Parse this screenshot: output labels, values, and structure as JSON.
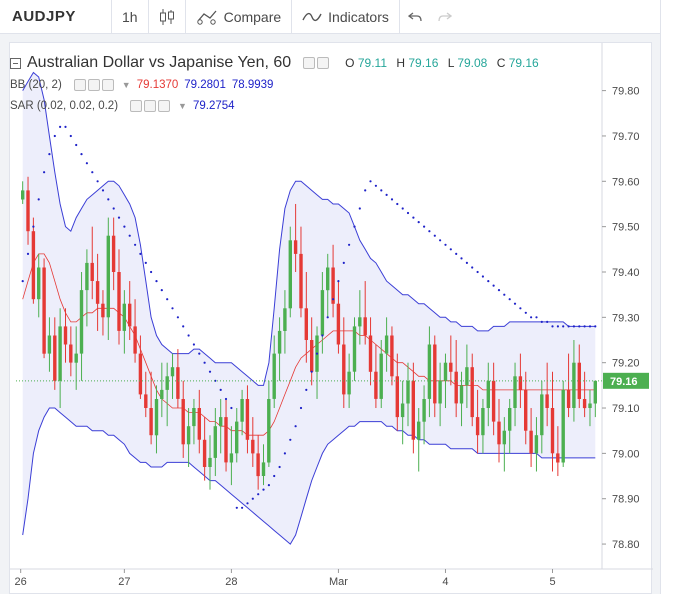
{
  "toolbar": {
    "symbol": "AUDJPY",
    "interval": "1h",
    "compare_label": "Compare",
    "indicators_label": "Indicators"
  },
  "legend": {
    "title": "Australian Dollar vs Japanise Yen, 60",
    "ohlc": {
      "o_label": "O",
      "o": "79.11",
      "h_label": "H",
      "h": "79.16",
      "l_label": "L",
      "l": "79.08",
      "c_label": "C",
      "c": "79.16"
    },
    "bb": {
      "label": "BB (20, 2)",
      "mid": "79.1370",
      "upper": "79.2801",
      "lower": "78.9939"
    },
    "sar": {
      "label": "SAR (0.02, 0.02, 0.2)",
      "value": "79.2754"
    }
  },
  "colors": {
    "up": "#4caf50",
    "down": "#e53935",
    "bb_band": "#3b3ed6",
    "bb_mid": "#e53935",
    "sar": "#1e22c8",
    "last_price_bg": "#4caf50"
  },
  "chart_data": {
    "type": "candlestick",
    "price_axis": {
      "ticks": [
        "79.80",
        "79.70",
        "79.60",
        "79.50",
        "79.40",
        "79.30",
        "79.20",
        "79.10",
        "79.00",
        "78.90",
        "78.80"
      ],
      "range": [
        78.745,
        79.905
      ]
    },
    "time_axis": {
      "labels": [
        "26",
        "27",
        "28",
        "Mar",
        "4",
        "5"
      ]
    },
    "last_price": "79.16",
    "bars_count": 108,
    "candles": [
      [
        79.56,
        79.6,
        79.55,
        79.58
      ],
      [
        79.58,
        79.61,
        79.46,
        79.49
      ],
      [
        79.49,
        79.52,
        79.33,
        79.34
      ],
      [
        79.34,
        79.44,
        79.3,
        79.41
      ],
      [
        79.41,
        79.43,
        79.21,
        79.22
      ],
      [
        79.22,
        79.3,
        79.18,
        79.26
      ],
      [
        79.26,
        79.3,
        79.14,
        79.16
      ],
      [
        79.16,
        79.32,
        79.1,
        79.28
      ],
      [
        79.28,
        79.32,
        79.2,
        79.24
      ],
      [
        79.24,
        79.28,
        79.17,
        79.2
      ],
      [
        79.2,
        79.28,
        79.14,
        79.22
      ],
      [
        79.22,
        79.4,
        79.16,
        79.36
      ],
      [
        79.36,
        79.45,
        79.28,
        79.42
      ],
      [
        79.42,
        79.5,
        79.34,
        79.38
      ],
      [
        79.38,
        79.44,
        79.27,
        79.33
      ],
      [
        79.33,
        79.36,
        79.26,
        79.3
      ],
      [
        79.3,
        79.52,
        79.25,
        79.48
      ],
      [
        79.48,
        79.52,
        79.36,
        79.4
      ],
      [
        79.4,
        79.45,
        79.24,
        79.27
      ],
      [
        79.27,
        79.36,
        79.22,
        79.33
      ],
      [
        79.33,
        79.38,
        79.25,
        79.28
      ],
      [
        79.28,
        79.34,
        79.2,
        79.22
      ],
      [
        79.22,
        79.26,
        79.12,
        79.13
      ],
      [
        79.13,
        79.18,
        79.08,
        79.1
      ],
      [
        79.1,
        79.18,
        79.02,
        79.04
      ],
      [
        79.04,
        79.15,
        79.0,
        79.12
      ],
      [
        79.12,
        79.2,
        79.08,
        79.14
      ],
      [
        79.14,
        79.2,
        79.06,
        79.17
      ],
      [
        79.17,
        79.22,
        79.12,
        79.19
      ],
      [
        79.19,
        79.23,
        79.1,
        79.12
      ],
      [
        79.12,
        79.16,
        78.99,
        79.02
      ],
      [
        79.02,
        79.1,
        78.97,
        79.06
      ],
      [
        79.06,
        79.12,
        79.02,
        79.1
      ],
      [
        79.1,
        79.14,
        79.0,
        79.03
      ],
      [
        79.03,
        79.08,
        78.94,
        78.97
      ],
      [
        78.97,
        79.04,
        78.92,
        78.99
      ],
      [
        78.99,
        79.1,
        78.95,
        79.06
      ],
      [
        79.06,
        79.12,
        79.0,
        79.08
      ],
      [
        79.08,
        79.12,
        78.96,
        78.98
      ],
      [
        78.98,
        79.06,
        78.93,
        79.0
      ],
      [
        79.0,
        79.1,
        78.98,
        79.07
      ],
      [
        79.07,
        79.14,
        79.04,
        79.12
      ],
      [
        79.12,
        79.15,
        79.0,
        79.03
      ],
      [
        79.03,
        79.08,
        78.97,
        79.0
      ],
      [
        79.0,
        79.04,
        78.92,
        78.95
      ],
      [
        78.95,
        79.02,
        78.93,
        78.98
      ],
      [
        78.98,
        79.16,
        78.97,
        79.12
      ],
      [
        79.12,
        79.26,
        79.1,
        79.22
      ],
      [
        79.22,
        79.3,
        79.16,
        79.27
      ],
      [
        79.27,
        79.36,
        79.22,
        79.32
      ],
      [
        79.32,
        79.5,
        79.3,
        79.47
      ],
      [
        79.47,
        79.55,
        79.4,
        79.44
      ],
      [
        79.44,
        79.5,
        79.3,
        79.32
      ],
      [
        79.32,
        79.4,
        79.2,
        79.25
      ],
      [
        79.25,
        79.3,
        79.15,
        79.18
      ],
      [
        79.18,
        79.28,
        79.12,
        79.26
      ],
      [
        79.26,
        79.4,
        79.22,
        79.36
      ],
      [
        79.36,
        79.44,
        79.3,
        79.41
      ],
      [
        79.41,
        79.46,
        79.3,
        79.33
      ],
      [
        79.33,
        79.38,
        79.22,
        79.24
      ],
      [
        79.24,
        79.3,
        79.1,
        79.13
      ],
      [
        79.13,
        79.22,
        79.1,
        79.18
      ],
      [
        79.18,
        79.3,
        79.16,
        79.28
      ],
      [
        79.28,
        79.36,
        79.24,
        79.3
      ],
      [
        79.3,
        79.38,
        79.24,
        79.26
      ],
      [
        79.26,
        79.3,
        79.15,
        79.18
      ],
      [
        79.18,
        79.24,
        79.1,
        79.12
      ],
      [
        79.12,
        79.25,
        79.1,
        79.22
      ],
      [
        79.22,
        79.3,
        79.18,
        79.26
      ],
      [
        79.26,
        79.28,
        79.15,
        79.17
      ],
      [
        79.17,
        79.22,
        79.05,
        79.08
      ],
      [
        79.08,
        79.16,
        79.02,
        79.11
      ],
      [
        79.11,
        79.2,
        79.06,
        79.16
      ],
      [
        79.16,
        79.2,
        79.0,
        79.03
      ],
      [
        79.03,
        79.1,
        78.96,
        79.07
      ],
      [
        79.07,
        79.15,
        79.02,
        79.12
      ],
      [
        79.12,
        79.28,
        79.08,
        79.24
      ],
      [
        79.24,
        79.26,
        79.08,
        79.11
      ],
      [
        79.11,
        79.2,
        79.06,
        79.16
      ],
      [
        79.16,
        79.22,
        79.1,
        79.2
      ],
      [
        79.2,
        79.26,
        79.15,
        79.18
      ],
      [
        79.18,
        79.25,
        79.08,
        79.11
      ],
      [
        79.11,
        79.18,
        79.06,
        79.15
      ],
      [
        79.15,
        79.24,
        79.1,
        79.19
      ],
      [
        79.19,
        79.22,
        79.06,
        79.08
      ],
      [
        79.08,
        79.14,
        79.0,
        79.04
      ],
      [
        79.04,
        79.12,
        79.0,
        79.1
      ],
      [
        79.1,
        79.2,
        79.06,
        79.16
      ],
      [
        79.16,
        79.2,
        79.04,
        79.07
      ],
      [
        79.07,
        79.12,
        78.98,
        79.02
      ],
      [
        79.02,
        79.08,
        78.96,
        79.05
      ],
      [
        79.05,
        79.12,
        79.0,
        79.1
      ],
      [
        79.1,
        79.2,
        79.06,
        79.17
      ],
      [
        79.17,
        79.22,
        79.1,
        79.14
      ],
      [
        79.14,
        79.18,
        79.02,
        79.05
      ],
      [
        79.05,
        79.1,
        78.97,
        79.0
      ],
      [
        79.0,
        79.08,
        78.96,
        79.04
      ],
      [
        79.04,
        79.16,
        79.0,
        79.13
      ],
      [
        79.13,
        79.2,
        79.06,
        79.1
      ],
      [
        79.1,
        79.18,
        78.96,
        79.0
      ],
      [
        79.0,
        79.06,
        78.95,
        78.98
      ],
      [
        78.98,
        79.16,
        78.97,
        79.14
      ],
      [
        79.14,
        79.22,
        79.08,
        79.1
      ],
      [
        79.1,
        79.25,
        79.07,
        79.2
      ],
      [
        79.2,
        79.24,
        79.1,
        79.12
      ],
      [
        79.12,
        79.18,
        79.08,
        79.1
      ],
      [
        79.1,
        79.14,
        79.06,
        79.11
      ],
      [
        79.11,
        79.16,
        79.08,
        79.16
      ]
    ],
    "bb_upper": [
      79.8,
      79.82,
      79.84,
      79.83,
      79.78,
      79.7,
      79.62,
      79.55,
      79.5,
      79.49,
      79.52,
      79.54,
      79.56,
      79.57,
      79.58,
      79.59,
      79.6,
      79.6,
      79.59,
      79.57,
      79.55,
      79.52,
      79.46,
      79.38,
      79.3,
      79.26,
      79.24,
      79.23,
      79.22,
      79.22,
      79.22,
      79.22,
      79.23,
      79.23,
      79.22,
      79.21,
      79.2,
      79.2,
      79.2,
      79.2,
      79.19,
      79.18,
      79.17,
      79.16,
      79.15,
      79.15,
      79.2,
      79.32,
      79.45,
      79.54,
      79.58,
      79.6,
      79.6,
      79.59,
      79.58,
      79.57,
      79.56,
      79.56,
      79.55,
      79.55,
      79.54,
      79.53,
      79.5,
      79.47,
      79.45,
      79.43,
      79.42,
      79.4,
      79.38,
      79.37,
      79.36,
      79.35,
      79.35,
      79.34,
      79.33,
      79.33,
      79.32,
      79.31,
      79.3,
      79.3,
      79.29,
      79.29,
      79.28,
      79.28,
      79.28,
      79.27,
      79.27,
      79.27,
      79.28,
      79.28,
      79.28,
      79.29,
      79.29,
      79.29,
      79.29,
      79.29,
      79.29,
      79.29,
      79.29,
      79.29,
      79.29,
      79.29,
      79.28,
      79.28,
      79.28,
      79.28,
      79.28,
      79.28
    ],
    "bb_mid": [
      79.34,
      79.38,
      79.42,
      79.44,
      79.44,
      79.42,
      79.38,
      79.34,
      79.31,
      79.29,
      79.29,
      79.3,
      79.31,
      79.31,
      79.32,
      79.32,
      79.32,
      79.32,
      79.31,
      79.3,
      79.28,
      79.26,
      79.23,
      79.2,
      79.17,
      79.14,
      79.12,
      79.11,
      79.1,
      79.1,
      79.1,
      79.09,
      79.09,
      79.09,
      79.08,
      79.07,
      79.07,
      79.06,
      79.06,
      79.05,
      79.05,
      79.05,
      79.04,
      79.04,
      79.04,
      79.04,
      79.05,
      79.07,
      79.1,
      79.13,
      79.16,
      79.19,
      79.21,
      79.22,
      79.23,
      79.24,
      79.25,
      79.26,
      79.27,
      79.27,
      79.27,
      79.27,
      79.27,
      79.26,
      79.26,
      79.25,
      79.24,
      79.23,
      79.22,
      79.21,
      79.2,
      79.2,
      79.19,
      79.18,
      79.17,
      79.17,
      79.16,
      79.16,
      79.16,
      79.16,
      79.16,
      79.15,
      79.15,
      79.15,
      79.15,
      79.15,
      79.14,
      79.14,
      79.14,
      79.14,
      79.14,
      79.14,
      79.14,
      79.14,
      79.14,
      79.14,
      79.14,
      79.14,
      79.14,
      79.14,
      79.14,
      79.14,
      79.14,
      79.14,
      79.14,
      79.14,
      79.14,
      79.14
    ],
    "bb_lower": [
      78.82,
      78.9,
      79.0,
      79.05,
      79.08,
      79.1,
      79.1,
      79.09,
      79.08,
      79.07,
      79.06,
      79.06,
      79.06,
      79.05,
      79.05,
      79.05,
      79.04,
      79.04,
      79.03,
      79.02,
      79.0,
      78.99,
      78.98,
      78.98,
      78.97,
      78.97,
      78.97,
      78.98,
      78.98,
      78.98,
      78.98,
      78.98,
      78.97,
      78.96,
      78.95,
      78.94,
      78.94,
      78.93,
      78.92,
      78.91,
      78.9,
      78.89,
      78.88,
      78.87,
      78.86,
      78.85,
      78.84,
      78.83,
      78.82,
      78.81,
      78.8,
      78.82,
      78.86,
      78.9,
      78.94,
      78.97,
      79.0,
      79.02,
      79.03,
      79.04,
      79.05,
      79.06,
      79.06,
      79.07,
      79.07,
      79.07,
      79.07,
      79.07,
      79.06,
      79.06,
      79.05,
      79.05,
      79.04,
      79.04,
      79.03,
      79.03,
      79.02,
      79.02,
      79.02,
      79.02,
      79.01,
      79.01,
      79.01,
      79.01,
      79.01,
      79.0,
      79.0,
      79.0,
      79.0,
      79.0,
      79.0,
      79.0,
      79.0,
      79.0,
      79.0,
      79.0,
      79.0,
      78.99,
      78.99,
      78.99,
      78.99,
      78.99,
      78.99,
      78.99,
      78.99,
      78.99,
      78.99,
      78.99
    ],
    "sar": [
      79.38,
      79.44,
      79.5,
      79.56,
      79.62,
      79.66,
      79.7,
      79.72,
      79.72,
      79.7,
      79.68,
      79.66,
      79.64,
      79.62,
      79.6,
      79.58,
      79.56,
      79.54,
      79.52,
      79.5,
      79.48,
      79.46,
      79.44,
      79.42,
      79.4,
      79.38,
      79.36,
      79.34,
      79.32,
      79.3,
      79.28,
      79.26,
      79.24,
      79.22,
      79.2,
      79.18,
      79.16,
      79.14,
      79.12,
      79.1,
      78.88,
      78.88,
      78.89,
      78.9,
      78.91,
      78.92,
      78.93,
      78.95,
      78.97,
      79.0,
      79.03,
      79.06,
      79.1,
      79.14,
      79.18,
      79.22,
      79.26,
      79.3,
      79.34,
      79.38,
      79.42,
      79.46,
      79.5,
      79.54,
      79.58,
      79.6,
      79.59,
      79.58,
      79.57,
      79.56,
      79.55,
      79.54,
      79.53,
      79.52,
      79.51,
      79.5,
      79.49,
      79.48,
      79.47,
      79.46,
      79.45,
      79.44,
      79.43,
      79.42,
      79.41,
      79.4,
      79.39,
      79.38,
      79.37,
      79.36,
      79.35,
      79.34,
      79.33,
      79.32,
      79.31,
      79.3,
      79.3,
      79.29,
      79.29,
      79.28,
      79.28,
      79.28,
      79.28,
      79.28,
      79.28,
      79.28,
      79.28,
      79.28
    ]
  }
}
